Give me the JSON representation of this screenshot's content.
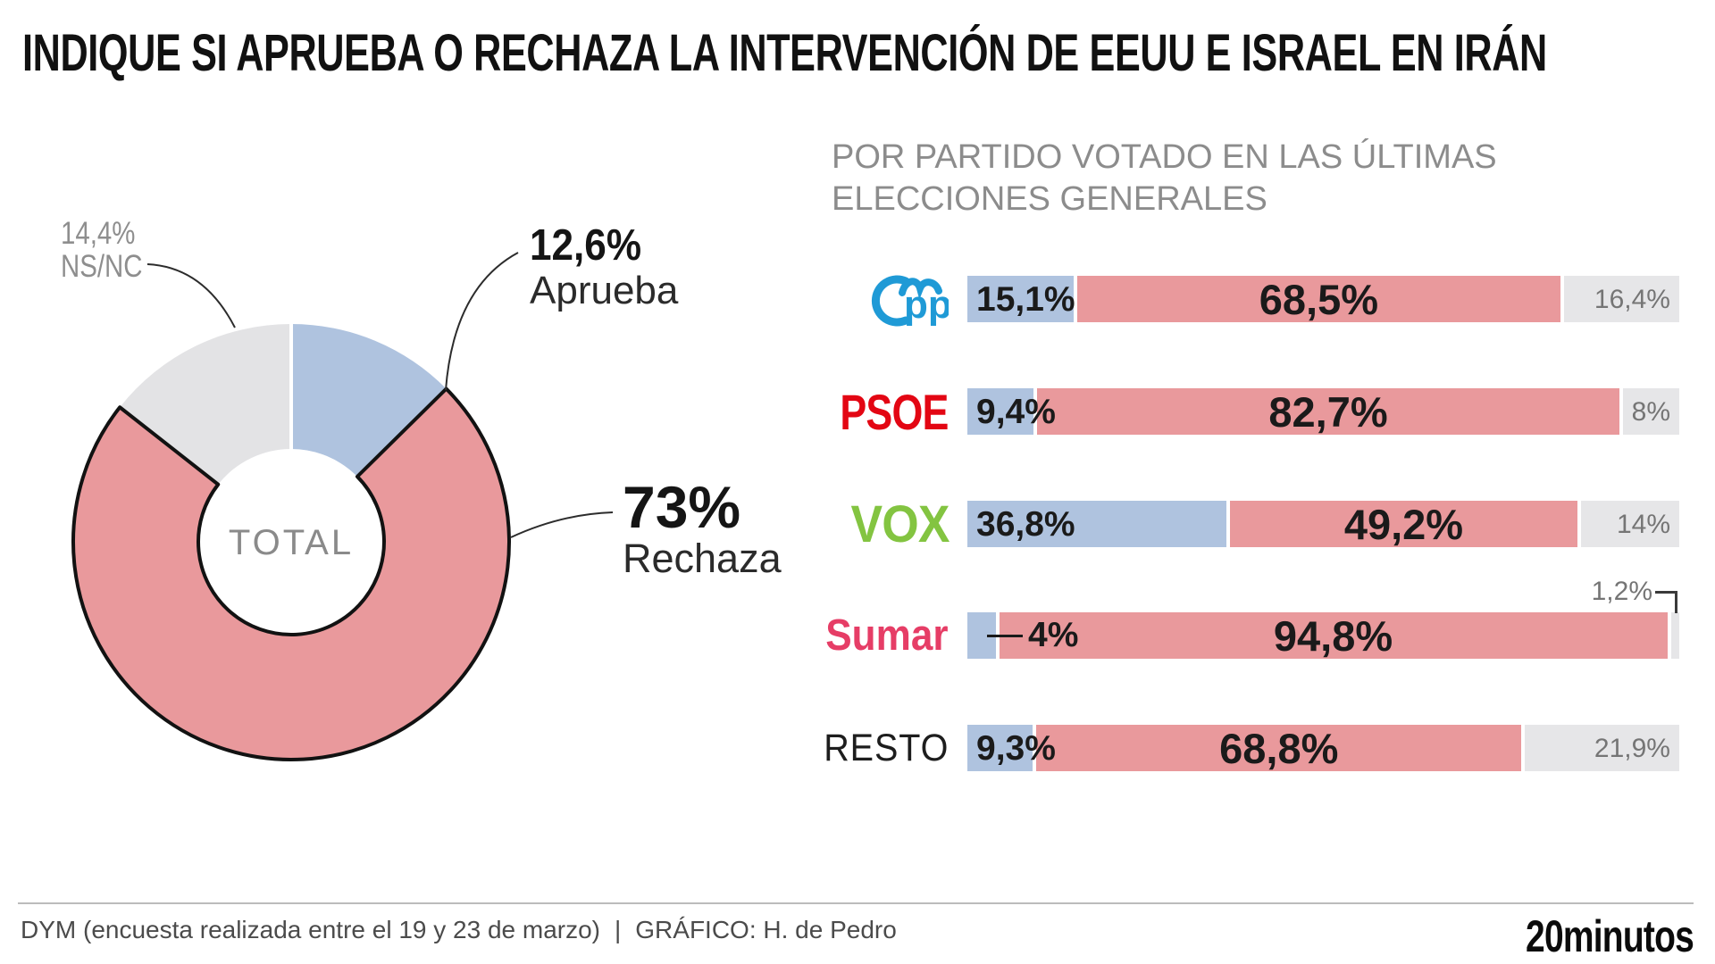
{
  "title": "INDIQUE SI APRUEBA O RECHAZA LA INTERVENCIÓN DE EEUU E ISRAEL EN IRÁN",
  "subtitle": {
    "line1": "POR PARTIDO VOTADO EN LAS ÚLTIMAS",
    "line2": "ELECCIONES GENERALES"
  },
  "donut": {
    "center_label": "TOTAL",
    "callouts": [
      {
        "value": "14,4%",
        "label": "NS/NC"
      },
      {
        "value": "12,6%",
        "label": "Aprueba"
      },
      {
        "value": "73%",
        "label": "Rechaza"
      }
    ]
  },
  "chart_data": [
    {
      "type": "pie",
      "subtype": "donut",
      "title": "TOTAL",
      "labels": [
        "Aprueba",
        "Rechaza",
        "NS/NC"
      ],
      "values": [
        12.6,
        73,
        14.4
      ],
      "value_labels": [
        "12,6%",
        "73%",
        "14,4%"
      ],
      "colors": [
        "#afc3df",
        "#e9999c",
        "#e3e3e5"
      ],
      "emphasized_slice": "Rechaza",
      "start_angle_deg": 0,
      "direction": "clockwise"
    },
    {
      "type": "bar",
      "subtype": "horizontal-stacked-100",
      "title": "POR PARTIDO VOTADO EN LAS ÚLTIMAS ELECCIONES GENERALES",
      "categories": [
        "PP",
        "PSOE",
        "VOX",
        "Sumar",
        "RESTO"
      ],
      "series": [
        {
          "name": "Aprueba",
          "color": "#afc3df",
          "values": [
            15.1,
            9.4,
            36.8,
            4.0,
            9.3
          ],
          "labels": [
            "15,1%",
            "9,4%",
            "36,8%",
            "4%",
            "9,3%"
          ]
        },
        {
          "name": "Rechaza",
          "color": "#e9999c",
          "values": [
            68.5,
            82.7,
            49.2,
            94.8,
            68.8
          ],
          "labels": [
            "68,5%",
            "82,7%",
            "49,2%",
            "94,8%",
            "68,8%"
          ]
        },
        {
          "name": "NS/NC",
          "color": "#e6e6e8",
          "values": [
            16.4,
            8.0,
            14.0,
            1.2,
            21.9
          ],
          "labels": [
            "16,4%",
            "8%",
            "14%",
            "1,2%",
            "21,9%"
          ]
        }
      ],
      "xlim": [
        0,
        100
      ]
    }
  ],
  "parties": [
    {
      "name": "PP",
      "style": "logo-pp",
      "color": "#1f9ad6"
    },
    {
      "name": "PSOE",
      "style": "wordmark",
      "color": "#e30613"
    },
    {
      "name": "VOX",
      "style": "wordmark",
      "color": "#83c441"
    },
    {
      "name": "Sumar",
      "style": "wordmark",
      "color": "#e63d66"
    },
    {
      "name": "RESTO",
      "style": "plain",
      "color": "#1d1d1d"
    }
  ],
  "footer": {
    "source": "DYM (encuesta realizada entre el 19 y 23 de marzo)",
    "separator": "|",
    "credit": "GRÁFICO: H. de Pedro",
    "brand": "20minutos"
  }
}
